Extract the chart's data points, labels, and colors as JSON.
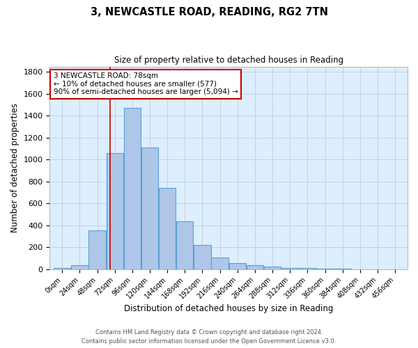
{
  "title1": "3, NEWCASTLE ROAD, READING, RG2 7TN",
  "title2": "Size of property relative to detached houses in Reading",
  "xlabel": "Distribution of detached houses by size in Reading",
  "ylabel": "Number of detached properties",
  "bar_color": "#aec6e8",
  "bar_edge_color": "#5a9fd4",
  "background_color": "#ddeeff",
  "grid_color": "#bbccdd",
  "red_line_x": 78,
  "annotation_line1": "3 NEWCASTLE ROAD: 78sqm",
  "annotation_line2": "← 10% of detached houses are smaller (577)",
  "annotation_line3": "90% of semi-detached houses are larger (5,094) →",
  "annotation_box_color": "#ffffff",
  "annotation_box_edge": "#cc0000",
  "footer1": "Contains HM Land Registry data © Crown copyright and database right 2024.",
  "footer2": "Contains public sector information licensed under the Open Government Licence v3.0.",
  "bins": [
    0,
    24,
    48,
    72,
    96,
    120,
    144,
    168,
    192,
    216,
    240,
    264,
    288,
    312,
    336,
    360,
    384,
    408,
    432,
    456,
    480
  ],
  "counts": [
    10,
    35,
    355,
    1060,
    1470,
    1110,
    745,
    435,
    220,
    110,
    55,
    40,
    25,
    15,
    10,
    5,
    3,
    2,
    1,
    1
  ],
  "ylim": [
    0,
    1850
  ],
  "xlim": [
    -5,
    485
  ],
  "yticks": [
    0,
    200,
    400,
    600,
    800,
    1000,
    1200,
    1400,
    1600,
    1800
  ],
  "fig_bg": "#ffffff"
}
